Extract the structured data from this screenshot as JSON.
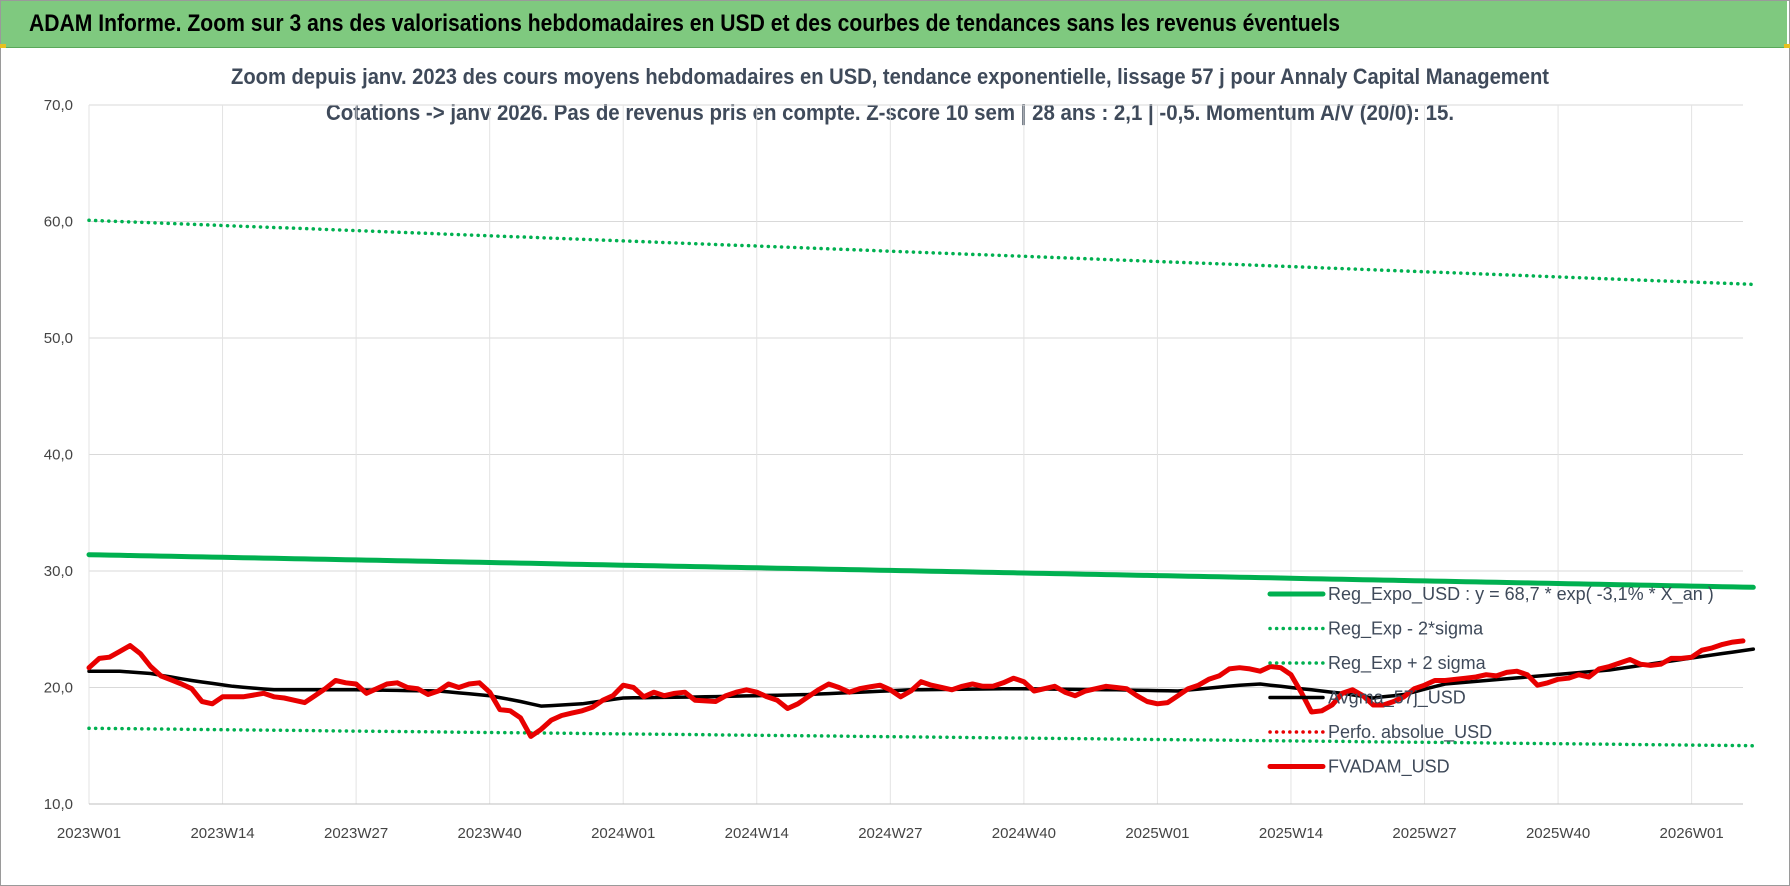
{
  "banner": {
    "title": "ADAM Informe. Zoom sur 3 ans des valorisations hebdomadaires en USD et des courbes de tendances sans les revenus éventuels"
  },
  "colors": {
    "banner": "#7fc97f",
    "reg_expo": "#00b050",
    "sigma": "#00b050",
    "avg": "#000000",
    "fvadam": "#e80000",
    "perfo": "#e80000"
  },
  "chart_data": {
    "type": "line",
    "title_lines": [
      "Zoom depuis janv. 2023 des cours moyens hebdomadaires en USD, tendance exponentielle, lissage 57 j pour Annaly Capital Management",
      "Cotations -> janv 2026. Pas de revenus pris en compte. Z-score 10 sem | 28 ans : 2,1 | -0,5. Momentum A/V (20/0): 15."
    ],
    "ylim": [
      10,
      70
    ],
    "yticks": [
      "10,0",
      "20,0",
      "30,0",
      "40,0",
      "50,0",
      "60,0",
      "70,0"
    ],
    "yticks_values": [
      10,
      20,
      30,
      40,
      50,
      60,
      70
    ],
    "xticks": [
      "2023W01",
      "2023W14",
      "2023W27",
      "2023W40",
      "2024W01",
      "2024W14",
      "2024W27",
      "2024W40",
      "2025W01",
      "2025W14",
      "2025W27",
      "2025W40",
      "2026W01"
    ],
    "xticks_index": [
      0,
      13,
      26,
      39,
      52,
      65,
      78,
      91,
      104,
      117,
      130,
      143,
      156
    ],
    "x_count": 162,
    "grid": true,
    "legend_position": "bottom-right",
    "series": [
      {
        "name": "Reg_Expo_USD : y = 68,7 * exp( -3,1% * X_an )",
        "style": "thick-solid",
        "color": "#00b050",
        "anchors": [
          [
            0,
            31.4
          ],
          [
            162,
            28.6
          ]
        ]
      },
      {
        "name": "Reg_Exp - 2*sigma",
        "style": "dotted",
        "color": "#00b050",
        "anchors": [
          [
            0,
            16.5
          ],
          [
            162,
            15.0
          ]
        ]
      },
      {
        "name": "Reg_Exp + 2 sigma",
        "style": "dotted",
        "color": "#00b050",
        "anchors": [
          [
            0,
            60.1
          ],
          [
            162,
            54.6
          ]
        ]
      },
      {
        "name": "Avgma_57j_USD",
        "style": "solid",
        "color": "#000000",
        "anchors": [
          [
            0,
            21.4
          ],
          [
            3,
            21.4
          ],
          [
            6,
            21.2
          ],
          [
            10,
            20.6
          ],
          [
            14,
            20.1
          ],
          [
            18,
            19.8
          ],
          [
            26,
            19.8
          ],
          [
            34,
            19.7
          ],
          [
            39,
            19.3
          ],
          [
            42,
            18.8
          ],
          [
            44,
            18.4
          ],
          [
            48,
            18.6
          ],
          [
            52,
            19.1
          ],
          [
            60,
            19.2
          ],
          [
            70,
            19.4
          ],
          [
            80,
            19.8
          ],
          [
            90,
            19.9
          ],
          [
            100,
            19.8
          ],
          [
            106,
            19.7
          ],
          [
            112,
            20.2
          ],
          [
            114,
            20.3
          ],
          [
            118,
            19.9
          ],
          [
            122,
            19.5
          ],
          [
            125,
            19.1
          ],
          [
            128,
            19.4
          ],
          [
            132,
            20.3
          ],
          [
            140,
            20.9
          ],
          [
            148,
            21.5
          ],
          [
            155,
            22.4
          ],
          [
            162,
            23.3
          ]
        ]
      },
      {
        "name": "Perfo. absolue_USD",
        "style": "dotted",
        "color": "#e80000",
        "anchors": []
      },
      {
        "name": "FVADAM_USD",
        "style": "thick-solid",
        "color": "#e80000",
        "anchors": [
          [
            0,
            21.7
          ],
          [
            1,
            22.5
          ],
          [
            2,
            22.6
          ],
          [
            3,
            23.1
          ],
          [
            4,
            23.6
          ],
          [
            5,
            22.9
          ],
          [
            6,
            21.8
          ],
          [
            7,
            21.0
          ],
          [
            9,
            20.3
          ],
          [
            10,
            19.9
          ],
          [
            11,
            18.8
          ],
          [
            12,
            18.6
          ],
          [
            13,
            19.2
          ],
          [
            15,
            19.2
          ],
          [
            17,
            19.5
          ],
          [
            18,
            19.2
          ],
          [
            19,
            19.1
          ],
          [
            20,
            18.9
          ],
          [
            21,
            18.7
          ],
          [
            22,
            19.3
          ],
          [
            23,
            19.9
          ],
          [
            24,
            20.6
          ],
          [
            25,
            20.4
          ],
          [
            26,
            20.3
          ],
          [
            27,
            19.5
          ],
          [
            28,
            19.9
          ],
          [
            29,
            20.3
          ],
          [
            30,
            20.4
          ],
          [
            31,
            20.0
          ],
          [
            32,
            19.9
          ],
          [
            33,
            19.4
          ],
          [
            34,
            19.7
          ],
          [
            35,
            20.3
          ],
          [
            36,
            20.0
          ],
          [
            37,
            20.3
          ],
          [
            38,
            20.4
          ],
          [
            39,
            19.6
          ],
          [
            40,
            18.1
          ],
          [
            41,
            18.0
          ],
          [
            42,
            17.4
          ],
          [
            43,
            15.8
          ],
          [
            44,
            16.4
          ],
          [
            45,
            17.2
          ],
          [
            46,
            17.6
          ],
          [
            47,
            17.8
          ],
          [
            48,
            18.0
          ],
          [
            49,
            18.3
          ],
          [
            50,
            18.9
          ],
          [
            51,
            19.3
          ],
          [
            52,
            20.2
          ],
          [
            53,
            20.0
          ],
          [
            54,
            19.2
          ],
          [
            55,
            19.6
          ],
          [
            56,
            19.3
          ],
          [
            57,
            19.5
          ],
          [
            58,
            19.6
          ],
          [
            59,
            18.9
          ],
          [
            61,
            18.8
          ],
          [
            62,
            19.3
          ],
          [
            63,
            19.6
          ],
          [
            64,
            19.8
          ],
          [
            65,
            19.6
          ],
          [
            66,
            19.2
          ],
          [
            67,
            18.9
          ],
          [
            68,
            18.2
          ],
          [
            69,
            18.6
          ],
          [
            70,
            19.2
          ],
          [
            71,
            19.8
          ],
          [
            72,
            20.3
          ],
          [
            73,
            20.0
          ],
          [
            74,
            19.6
          ],
          [
            75,
            19.9
          ],
          [
            77,
            20.2
          ],
          [
            78,
            19.8
          ],
          [
            79,
            19.2
          ],
          [
            80,
            19.7
          ],
          [
            81,
            20.5
          ],
          [
            82,
            20.2
          ],
          [
            83,
            20.0
          ],
          [
            84,
            19.8
          ],
          [
            85,
            20.1
          ],
          [
            86,
            20.3
          ],
          [
            87,
            20.1
          ],
          [
            88,
            20.1
          ],
          [
            89,
            20.4
          ],
          [
            90,
            20.8
          ],
          [
            91,
            20.5
          ],
          [
            92,
            19.7
          ],
          [
            93,
            19.9
          ],
          [
            94,
            20.1
          ],
          [
            95,
            19.6
          ],
          [
            96,
            19.3
          ],
          [
            97,
            19.7
          ],
          [
            98,
            19.9
          ],
          [
            99,
            20.1
          ],
          [
            101,
            19.9
          ],
          [
            102,
            19.3
          ],
          [
            103,
            18.8
          ],
          [
            104,
            18.6
          ],
          [
            105,
            18.7
          ],
          [
            106,
            19.3
          ],
          [
            107,
            19.9
          ],
          [
            108,
            20.2
          ],
          [
            109,
            20.7
          ],
          [
            110,
            21.0
          ],
          [
            111,
            21.6
          ],
          [
            112,
            21.7
          ],
          [
            113,
            21.6
          ],
          [
            114,
            21.4
          ],
          [
            115,
            21.8
          ],
          [
            116,
            21.7
          ],
          [
            117,
            21.1
          ],
          [
            118,
            19.6
          ],
          [
            119,
            17.9
          ],
          [
            120,
            18.0
          ],
          [
            121,
            18.5
          ],
          [
            122,
            19.5
          ],
          [
            123,
            19.8
          ],
          [
            124,
            19.3
          ],
          [
            125,
            18.5
          ],
          [
            126,
            18.5
          ],
          [
            127,
            18.8
          ],
          [
            128,
            19.2
          ],
          [
            129,
            19.9
          ],
          [
            130,
            20.2
          ],
          [
            131,
            20.6
          ],
          [
            132,
            20.6
          ],
          [
            133,
            20.7
          ],
          [
            134,
            20.8
          ],
          [
            135,
            20.9
          ],
          [
            136,
            21.1
          ],
          [
            137,
            21.0
          ],
          [
            138,
            21.3
          ],
          [
            139,
            21.4
          ],
          [
            140,
            21.1
          ],
          [
            141,
            20.2
          ],
          [
            142,
            20.4
          ],
          [
            143,
            20.7
          ],
          [
            144,
            20.8
          ],
          [
            145,
            21.1
          ],
          [
            146,
            20.9
          ],
          [
            147,
            21.6
          ],
          [
            148,
            21.8
          ],
          [
            149,
            22.1
          ],
          [
            150,
            22.4
          ],
          [
            151,
            22.0
          ],
          [
            152,
            21.9
          ],
          [
            153,
            22.0
          ],
          [
            154,
            22.5
          ],
          [
            155,
            22.5
          ],
          [
            156,
            22.6
          ],
          [
            157,
            23.2
          ],
          [
            158,
            23.4
          ],
          [
            159,
            23.7
          ],
          [
            160,
            23.9
          ],
          [
            161,
            24.0
          ]
        ]
      }
    ]
  }
}
